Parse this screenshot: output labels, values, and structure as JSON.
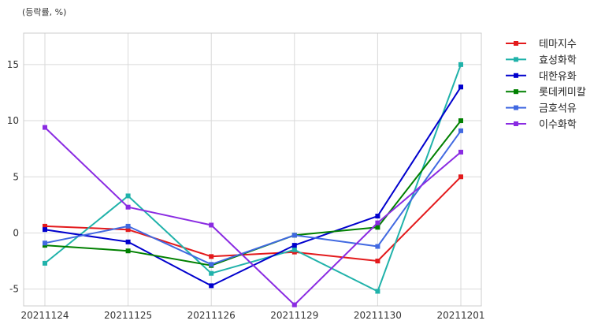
{
  "chart_data": {
    "type": "line",
    "unit_label": "(등락률, %)",
    "categories": [
      "20211124",
      "20211125",
      "20211126",
      "20211129",
      "20211130",
      "20211201"
    ],
    "ylim": [
      -6.5,
      17.8
    ],
    "yticks": [
      -5,
      0,
      5,
      10,
      15
    ],
    "grid": true,
    "legend_position": "right",
    "series": [
      {
        "name": "테마지수",
        "color": "#e31a1c",
        "values": [
          0.6,
          0.3,
          -2.1,
          -1.7,
          -2.5,
          5.0
        ]
      },
      {
        "name": "효성화학",
        "color": "#20b2aa",
        "values": [
          -2.7,
          3.3,
          -3.6,
          -1.5,
          -5.2,
          15.0
        ]
      },
      {
        "name": "대한유화",
        "color": "#0000cd",
        "values": [
          0.3,
          -0.8,
          -4.7,
          -1.1,
          1.5,
          13.0
        ]
      },
      {
        "name": "롯데케미칼",
        "color": "#008000",
        "values": [
          -1.1,
          -1.6,
          -2.9,
          -0.2,
          0.5,
          10.0
        ]
      },
      {
        "name": "금호석유",
        "color": "#4169e1",
        "values": [
          -0.9,
          0.6,
          -2.8,
          -0.2,
          -1.2,
          9.1
        ]
      },
      {
        "name": "이수화학",
        "color": "#8a2be2",
        "values": [
          9.4,
          2.3,
          0.7,
          -6.4,
          0.9,
          7.2
        ]
      }
    ]
  }
}
